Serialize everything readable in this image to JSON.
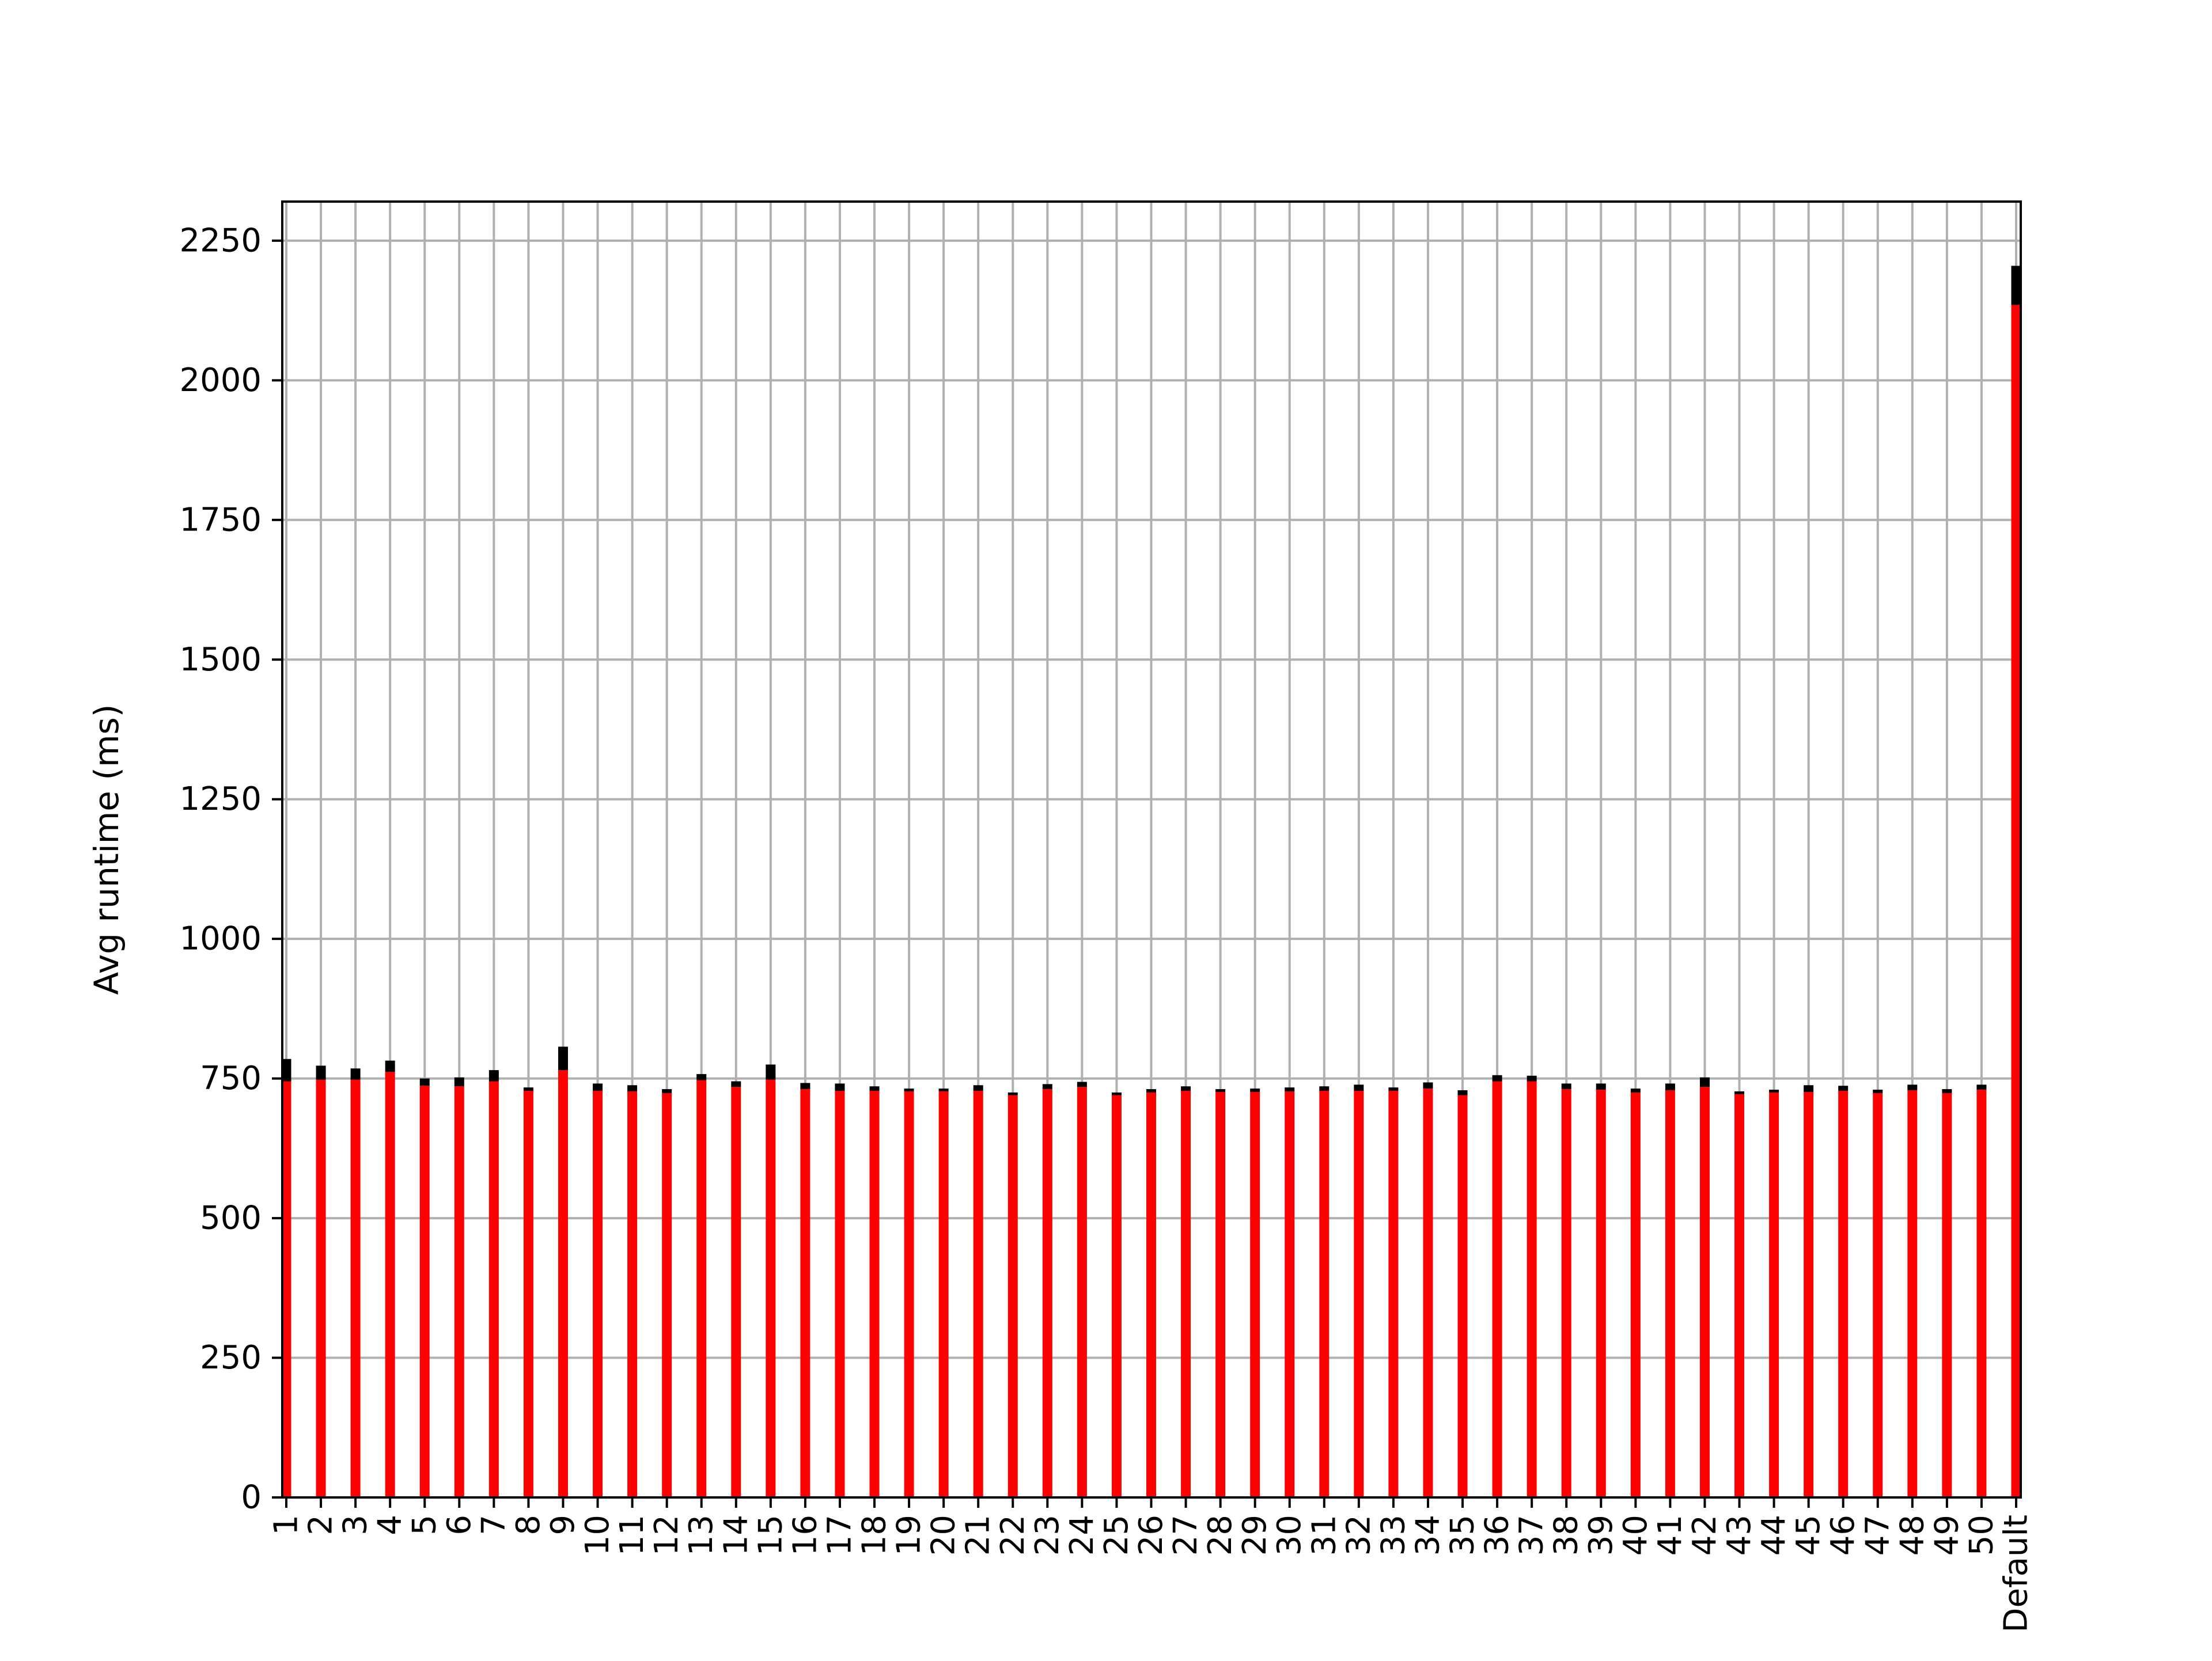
{
  "chart_data": {
    "type": "bar",
    "title": "",
    "xlabel": "",
    "ylabel": "Avg runtime (ms)",
    "ylim": [
      0,
      2320
    ],
    "yticks": [
      0,
      250,
      500,
      750,
      1000,
      1250,
      1500,
      1750,
      2000,
      2250
    ],
    "grid": true,
    "categories": [
      "1",
      "2",
      "3",
      "4",
      "5",
      "6",
      "7",
      "8",
      "9",
      "10",
      "11",
      "12",
      "13",
      "14",
      "15",
      "16",
      "17",
      "18",
      "19",
      "20",
      "21",
      "22",
      "23",
      "24",
      "25",
      "26",
      "27",
      "28",
      "29",
      "30",
      "31",
      "32",
      "33",
      "34",
      "35",
      "36",
      "37",
      "38",
      "39",
      "40",
      "41",
      "42",
      "43",
      "44",
      "45",
      "46",
      "47",
      "48",
      "49",
      "50",
      "Default"
    ],
    "series": [
      {
        "values": [
          745,
          748,
          748,
          762,
          737,
          736,
          745,
          728,
          765,
          728,
          727,
          724,
          747,
          735,
          748,
          731,
          728,
          728,
          727,
          727,
          728,
          720,
          731,
          735,
          720,
          725,
          728,
          726,
          726,
          727,
          728,
          728,
          728,
          732,
          720,
          745,
          745,
          731,
          730,
          725,
          729,
          735,
          722,
          725,
          726,
          728,
          724,
          729,
          724,
          730,
          2135
        ],
        "errors": [
          40,
          25,
          20,
          20,
          13,
          16,
          20,
          6,
          42,
          13,
          11,
          7,
          11,
          10,
          27,
          11,
          13,
          8,
          5,
          5,
          10,
          5,
          9,
          9,
          5,
          6,
          8,
          5,
          6,
          7,
          8,
          11,
          6,
          11,
          9,
          11,
          10,
          10,
          11,
          7,
          12,
          17,
          5,
          5,
          12,
          9,
          6,
          10,
          7,
          9,
          70
        ],
        "color": "#ff0000",
        "error_color": "#000000"
      }
    ]
  }
}
